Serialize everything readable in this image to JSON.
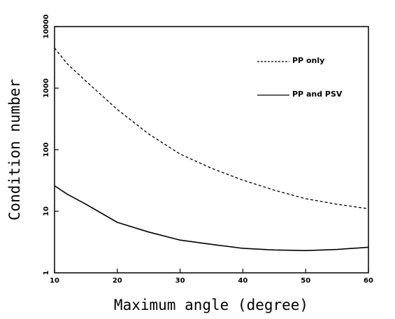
{
  "chart_data": {
    "type": "line",
    "xlabel": "Maximum angle (degree)",
    "ylabel": "Condition number",
    "x": [
      10,
      12,
      15,
      20,
      25,
      30,
      35,
      40,
      45,
      50,
      55,
      60
    ],
    "series": [
      {
        "name": "PP only",
        "color": "#000000",
        "dash": true,
        "values": [
          4500,
          2500,
          1300,
          450,
          180,
          85,
          50,
          32,
          22,
          16,
          13,
          11
        ]
      },
      {
        "name": "PP and PSV",
        "color": "#000000",
        "dash": false,
        "values": [
          26,
          19,
          13,
          6.6,
          4.6,
          3.4,
          2.9,
          2.5,
          2.35,
          2.3,
          2.4,
          2.6
        ]
      }
    ],
    "xlim": [
      10,
      60
    ],
    "xticks": [
      10,
      20,
      30,
      40,
      50,
      60
    ],
    "ylim": [
      1,
      10000
    ],
    "yticks": [
      1,
      10,
      100,
      1000,
      10000
    ],
    "ylog": true,
    "legend": "upper right"
  }
}
